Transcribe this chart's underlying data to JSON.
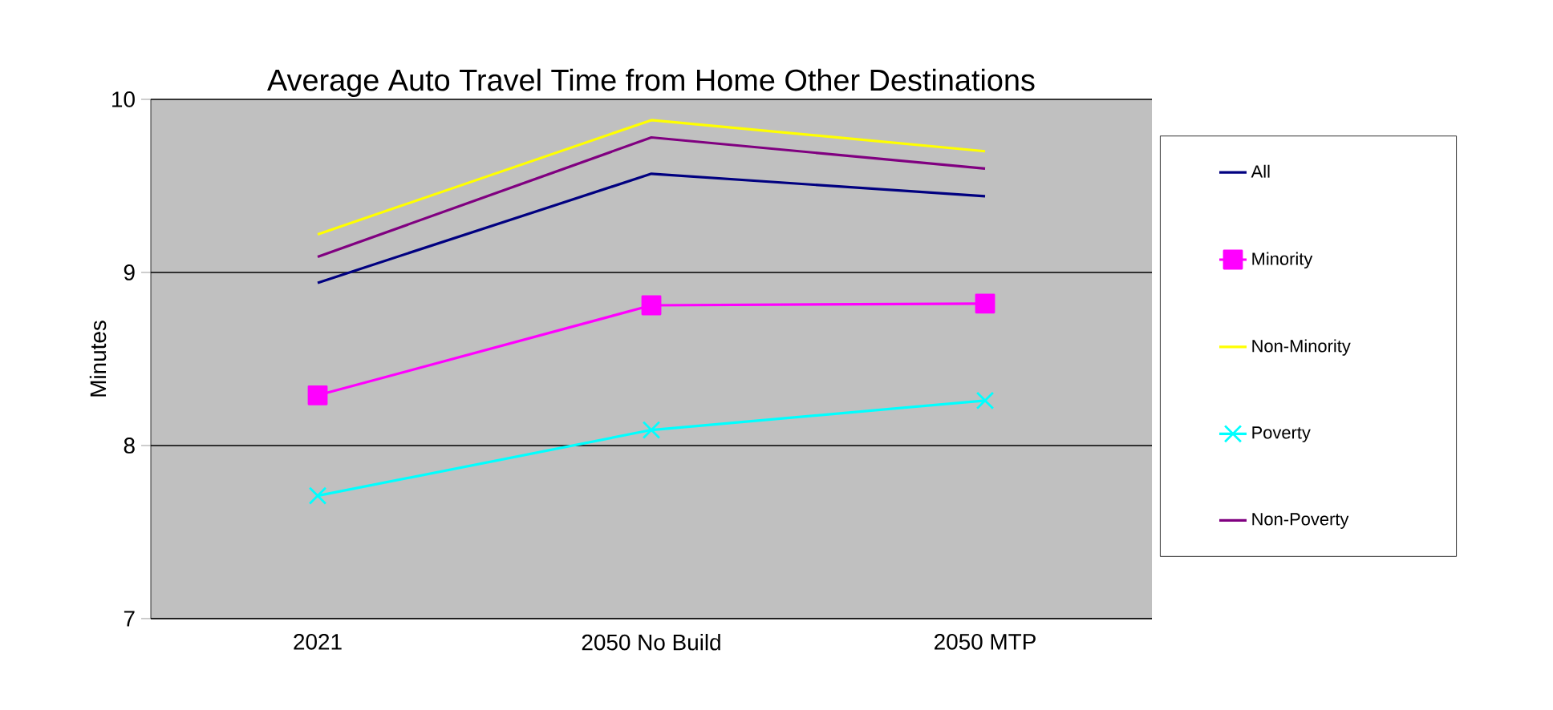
{
  "chart_data": {
    "type": "line",
    "title": "Average Auto Travel Time from Home Other Destinations",
    "ylabel": "Minutes",
    "categories": [
      "2021",
      "2050 No Build",
      "2050 MTP"
    ],
    "series": [
      {
        "name": "All",
        "color": "#000080",
        "marker": "none",
        "values": [
          8.94,
          9.57,
          9.44
        ]
      },
      {
        "name": "Minority",
        "color": "#ff00ff",
        "marker": "square",
        "values": [
          8.29,
          8.81,
          8.82
        ]
      },
      {
        "name": "Non-Minority",
        "color": "#ffff00",
        "marker": "none",
        "values": [
          9.22,
          9.88,
          9.7
        ]
      },
      {
        "name": "Poverty",
        "color": "#00ffff",
        "marker": "cross",
        "values": [
          7.71,
          8.09,
          8.26
        ]
      },
      {
        "name": "Non-Poverty",
        "color": "#800080",
        "marker": "none",
        "values": [
          9.09,
          9.78,
          9.6
        ]
      }
    ],
    "ylim": [
      7,
      10
    ],
    "yticks": [
      7,
      8,
      9,
      10
    ],
    "grid": "y",
    "legend": "right"
  }
}
